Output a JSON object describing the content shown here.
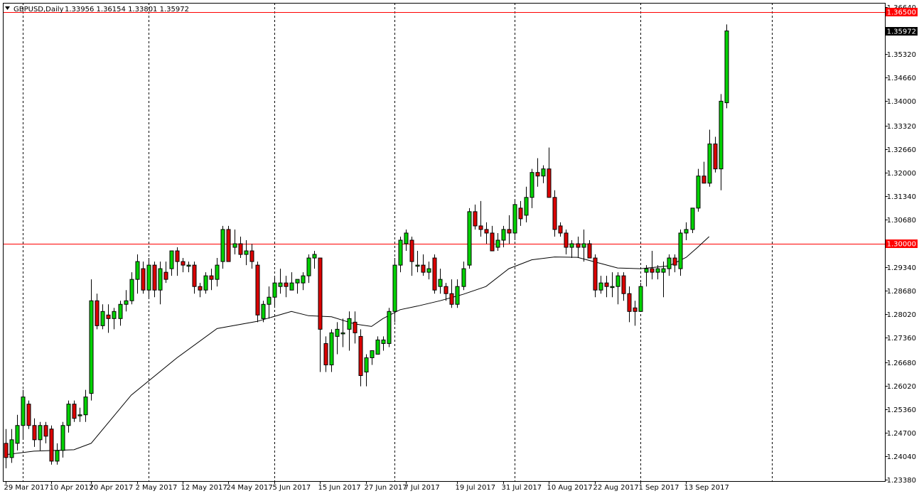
{
  "header": {
    "symbol": "GBPUSD,Daily",
    "ohlc": "1.33956 1.36154 1.33801 1.35972",
    "menu_icon": "triangle-down-icon"
  },
  "colors": {
    "bull": "#00d200",
    "bear": "#dc0000",
    "wick": "#000000",
    "hline": "#ff0000",
    "price_tag": "#000000",
    "level_tag": "#ff0000",
    "ma": "#000000"
  },
  "chart_data": {
    "type": "candlestick",
    "symbol": "GBPUSD",
    "timeframe": "Daily",
    "y_range": [
      1.2338,
      1.3664
    ],
    "y_ticks": [
      "1.36640",
      "1.35320",
      "1.34660",
      "1.34000",
      "1.33320",
      "1.32660",
      "1.32000",
      "1.31340",
      "1.30680",
      "1.29340",
      "1.28680",
      "1.28020",
      "1.27360",
      "1.26680",
      "1.26020",
      "1.25360",
      "1.24700",
      "1.24040",
      "1.23380"
    ],
    "x_labels": [
      "29 Mar 2017",
      "10 Apr 2017",
      "20 Apr 2017",
      "2 May 2017",
      "12 May 2017",
      "24 May 2017",
      "5 Jun 2017",
      "15 Jun 2017",
      "27 Jun 2017",
      "7 Jul 2017",
      "19 Jul 2017",
      "31 Jul 2017",
      "10 Aug 2017",
      "22 Aug 2017",
      "1 Sep 2017",
      "13 Sep 2017"
    ],
    "x_label_index": [
      0,
      8,
      15,
      23,
      31,
      39,
      47,
      55,
      63,
      70,
      79,
      87,
      95,
      103,
      111,
      119
    ],
    "period_separators_index": [
      3,
      25,
      47,
      68,
      89,
      111,
      134
    ],
    "horizontal_levels": [
      {
        "value": 1.365,
        "label": "1.36500"
      },
      {
        "value": 1.3,
        "label": "1.30000"
      }
    ],
    "current_price": {
      "value": 1.35972,
      "label": "1.35972"
    },
    "candles": [
      {
        "o": 1.244,
        "h": 1.248,
        "l": 1.237,
        "c": 1.24
      },
      {
        "o": 1.24,
        "h": 1.248,
        "l": 1.2385,
        "c": 1.245
      },
      {
        "o": 1.244,
        "h": 1.252,
        "l": 1.242,
        "c": 1.249
      },
      {
        "o": 1.249,
        "h": 1.259,
        "l": 1.245,
        "c": 1.257
      },
      {
        "o": 1.255,
        "h": 1.256,
        "l": 1.248,
        "c": 1.249
      },
      {
        "o": 1.249,
        "h": 1.251,
        "l": 1.243,
        "c": 1.245
      },
      {
        "o": 1.245,
        "h": 1.25,
        "l": 1.242,
        "c": 1.249
      },
      {
        "o": 1.249,
        "h": 1.25,
        "l": 1.244,
        "c": 1.246
      },
      {
        "o": 1.248,
        "h": 1.249,
        "l": 1.238,
        "c": 1.239
      },
      {
        "o": 1.239,
        "h": 1.244,
        "l": 1.238,
        "c": 1.242
      },
      {
        "o": 1.242,
        "h": 1.25,
        "l": 1.24,
        "c": 1.249
      },
      {
        "o": 1.249,
        "h": 1.256,
        "l": 1.247,
        "c": 1.255
      },
      {
        "o": 1.255,
        "h": 1.256,
        "l": 1.25,
        "c": 1.251
      },
      {
        "o": 1.252,
        "h": 1.254,
        "l": 1.25,
        "c": 1.252
      },
      {
        "o": 1.252,
        "h": 1.259,
        "l": 1.25,
        "c": 1.257
      },
      {
        "o": 1.258,
        "h": 1.29,
        "l": 1.256,
        "c": 1.284
      },
      {
        "o": 1.284,
        "h": 1.286,
        "l": 1.276,
        "c": 1.277
      },
      {
        "o": 1.277,
        "h": 1.283,
        "l": 1.276,
        "c": 1.281
      },
      {
        "o": 1.28,
        "h": 1.283,
        "l": 1.275,
        "c": 1.279
      },
      {
        "o": 1.279,
        "h": 1.282,
        "l": 1.276,
        "c": 1.281
      },
      {
        "o": 1.279,
        "h": 1.284,
        "l": 1.277,
        "c": 1.283
      },
      {
        "o": 1.283,
        "h": 1.287,
        "l": 1.281,
        "c": 1.284
      },
      {
        "o": 1.284,
        "h": 1.292,
        "l": 1.283,
        "c": 1.29
      },
      {
        "o": 1.29,
        "h": 1.297,
        "l": 1.286,
        "c": 1.295
      },
      {
        "o": 1.293,
        "h": 1.295,
        "l": 1.286,
        "c": 1.287
      },
      {
        "o": 1.287,
        "h": 1.296,
        "l": 1.285,
        "c": 1.294
      },
      {
        "o": 1.294,
        "h": 1.295,
        "l": 1.285,
        "c": 1.287
      },
      {
        "o": 1.287,
        "h": 1.295,
        "l": 1.283,
        "c": 1.293
      },
      {
        "o": 1.292,
        "h": 1.295,
        "l": 1.289,
        "c": 1.29
      },
      {
        "o": 1.293,
        "h": 1.297,
        "l": 1.291,
        "c": 1.298
      },
      {
        "o": 1.298,
        "h": 1.299,
        "l": 1.291,
        "c": 1.295
      },
      {
        "o": 1.295,
        "h": 1.296,
        "l": 1.292,
        "c": 1.294
      },
      {
        "o": 1.294,
        "h": 1.295,
        "l": 1.292,
        "c": 1.294
      },
      {
        "o": 1.294,
        "h": 1.295,
        "l": 1.286,
        "c": 1.288
      },
      {
        "o": 1.288,
        "h": 1.289,
        "l": 1.285,
        "c": 1.287
      },
      {
        "o": 1.287,
        "h": 1.292,
        "l": 1.286,
        "c": 1.291
      },
      {
        "o": 1.291,
        "h": 1.293,
        "l": 1.287,
        "c": 1.29
      },
      {
        "o": 1.29,
        "h": 1.296,
        "l": 1.288,
        "c": 1.294
      },
      {
        "o": 1.295,
        "h": 1.305,
        "l": 1.293,
        "c": 1.304
      },
      {
        "o": 1.304,
        "h": 1.305,
        "l": 1.295,
        "c": 1.295
      },
      {
        "o": 1.299,
        "h": 1.304,
        "l": 1.297,
        "c": 1.3
      },
      {
        "o": 1.3,
        "h": 1.302,
        "l": 1.296,
        "c": 1.297
      },
      {
        "o": 1.297,
        "h": 1.301,
        "l": 1.294,
        "c": 1.298
      },
      {
        "o": 1.298,
        "h": 1.3,
        "l": 1.293,
        "c": 1.295
      },
      {
        "o": 1.294,
        "h": 1.295,
        "l": 1.278,
        "c": 1.28
      },
      {
        "o": 1.279,
        "h": 1.284,
        "l": 1.278,
        "c": 1.283
      },
      {
        "o": 1.283,
        "h": 1.288,
        "l": 1.279,
        "c": 1.285
      },
      {
        "o": 1.285,
        "h": 1.291,
        "l": 1.282,
        "c": 1.289
      },
      {
        "o": 1.288,
        "h": 1.293,
        "l": 1.286,
        "c": 1.289
      },
      {
        "o": 1.289,
        "h": 1.291,
        "l": 1.285,
        "c": 1.288
      },
      {
        "o": 1.287,
        "h": 1.292,
        "l": 1.287,
        "c": 1.289
      },
      {
        "o": 1.289,
        "h": 1.29,
        "l": 1.286,
        "c": 1.29
      },
      {
        "o": 1.289,
        "h": 1.292,
        "l": 1.287,
        "c": 1.291
      },
      {
        "o": 1.291,
        "h": 1.297,
        "l": 1.289,
        "c": 1.296
      },
      {
        "o": 1.296,
        "h": 1.298,
        "l": 1.293,
        "c": 1.297
      },
      {
        "o": 1.296,
        "h": 1.296,
        "l": 1.264,
        "c": 1.276
      },
      {
        "o": 1.272,
        "h": 1.274,
        "l": 1.264,
        "c": 1.266
      },
      {
        "o": 1.266,
        "h": 1.276,
        "l": 1.264,
        "c": 1.275
      },
      {
        "o": 1.274,
        "h": 1.278,
        "l": 1.269,
        "c": 1.276
      },
      {
        "o": 1.275,
        "h": 1.279,
        "l": 1.271,
        "c": 1.275
      },
      {
        "o": 1.276,
        "h": 1.281,
        "l": 1.27,
        "c": 1.279
      },
      {
        "o": 1.278,
        "h": 1.281,
        "l": 1.272,
        "c": 1.275
      },
      {
        "o": 1.274,
        "h": 1.276,
        "l": 1.26,
        "c": 1.263
      },
      {
        "o": 1.264,
        "h": 1.269,
        "l": 1.26,
        "c": 1.268
      },
      {
        "o": 1.268,
        "h": 1.27,
        "l": 1.266,
        "c": 1.27
      },
      {
        "o": 1.269,
        "h": 1.274,
        "l": 1.269,
        "c": 1.273
      },
      {
        "o": 1.272,
        "h": 1.274,
        "l": 1.27,
        "c": 1.273
      },
      {
        "o": 1.272,
        "h": 1.282,
        "l": 1.271,
        "c": 1.281
      },
      {
        "o": 1.281,
        "h": 1.296,
        "l": 1.278,
        "c": 1.294
      },
      {
        "o": 1.294,
        "h": 1.302,
        "l": 1.292,
        "c": 1.301
      },
      {
        "o": 1.3,
        "h": 1.304,
        "l": 1.298,
        "c": 1.303
      },
      {
        "o": 1.301,
        "h": 1.302,
        "l": 1.291,
        "c": 1.295
      },
      {
        "o": 1.294,
        "h": 1.298,
        "l": 1.292,
        "c": 1.294
      },
      {
        "o": 1.294,
        "h": 1.297,
        "l": 1.291,
        "c": 1.292
      },
      {
        "o": 1.292,
        "h": 1.295,
        "l": 1.29,
        "c": 1.293
      },
      {
        "o": 1.296,
        "h": 1.297,
        "l": 1.286,
        "c": 1.287
      },
      {
        "o": 1.288,
        "h": 1.293,
        "l": 1.286,
        "c": 1.29
      },
      {
        "o": 1.288,
        "h": 1.289,
        "l": 1.284,
        "c": 1.286
      },
      {
        "o": 1.286,
        "h": 1.29,
        "l": 1.282,
        "c": 1.283
      },
      {
        "o": 1.283,
        "h": 1.29,
        "l": 1.282,
        "c": 1.288
      },
      {
        "o": 1.288,
        "h": 1.295,
        "l": 1.287,
        "c": 1.293
      },
      {
        "o": 1.294,
        "h": 1.31,
        "l": 1.293,
        "c": 1.309
      },
      {
        "o": 1.309,
        "h": 1.311,
        "l": 1.304,
        "c": 1.305
      },
      {
        "o": 1.305,
        "h": 1.312,
        "l": 1.302,
        "c": 1.304
      },
      {
        "o": 1.304,
        "h": 1.306,
        "l": 1.3,
        "c": 1.303
      },
      {
        "o": 1.303,
        "h": 1.305,
        "l": 1.298,
        "c": 1.298
      },
      {
        "o": 1.299,
        "h": 1.303,
        "l": 1.298,
        "c": 1.301
      },
      {
        "o": 1.301,
        "h": 1.305,
        "l": 1.299,
        "c": 1.304
      },
      {
        "o": 1.304,
        "h": 1.308,
        "l": 1.3,
        "c": 1.303
      },
      {
        "o": 1.303,
        "h": 1.312,
        "l": 1.301,
        "c": 1.311
      },
      {
        "o": 1.31,
        "h": 1.312,
        "l": 1.305,
        "c": 1.307
      },
      {
        "o": 1.308,
        "h": 1.316,
        "l": 1.306,
        "c": 1.313
      },
      {
        "o": 1.313,
        "h": 1.321,
        "l": 1.31,
        "c": 1.32
      },
      {
        "o": 1.32,
        "h": 1.324,
        "l": 1.316,
        "c": 1.319
      },
      {
        "o": 1.319,
        "h": 1.322,
        "l": 1.317,
        "c": 1.321
      },
      {
        "o": 1.321,
        "h": 1.327,
        "l": 1.313,
        "c": 1.313
      },
      {
        "o": 1.313,
        "h": 1.315,
        "l": 1.302,
        "c": 1.304
      },
      {
        "o": 1.305,
        "h": 1.306,
        "l": 1.302,
        "c": 1.303
      },
      {
        "o": 1.303,
        "h": 1.304,
        "l": 1.297,
        "c": 1.299
      },
      {
        "o": 1.299,
        "h": 1.301,
        "l": 1.296,
        "c": 1.3
      },
      {
        "o": 1.3,
        "h": 1.302,
        "l": 1.296,
        "c": 1.299
      },
      {
        "o": 1.299,
        "h": 1.304,
        "l": 1.295,
        "c": 1.3
      },
      {
        "o": 1.3,
        "h": 1.301,
        "l": 1.296,
        "c": 1.296
      },
      {
        "o": 1.296,
        "h": 1.297,
        "l": 1.285,
        "c": 1.287
      },
      {
        "o": 1.287,
        "h": 1.291,
        "l": 1.286,
        "c": 1.289
      },
      {
        "o": 1.289,
        "h": 1.291,
        "l": 1.285,
        "c": 1.288
      },
      {
        "o": 1.288,
        "h": 1.292,
        "l": 1.285,
        "c": 1.288
      },
      {
        "o": 1.288,
        "h": 1.292,
        "l": 1.283,
        "c": 1.291
      },
      {
        "o": 1.291,
        "h": 1.292,
        "l": 1.284,
        "c": 1.286
      },
      {
        "o": 1.286,
        "h": 1.288,
        "l": 1.278,
        "c": 1.281
      },
      {
        "o": 1.282,
        "h": 1.284,
        "l": 1.277,
        "c": 1.281
      },
      {
        "o": 1.281,
        "h": 1.289,
        "l": 1.281,
        "c": 1.288
      },
      {
        "o": 1.292,
        "h": 1.294,
        "l": 1.288,
        "c": 1.293
      },
      {
        "o": 1.293,
        "h": 1.298,
        "l": 1.29,
        "c": 1.292
      },
      {
        "o": 1.292,
        "h": 1.294,
        "l": 1.29,
        "c": 1.293
      },
      {
        "o": 1.292,
        "h": 1.295,
        "l": 1.285,
        "c": 1.293
      },
      {
        "o": 1.293,
        "h": 1.297,
        "l": 1.291,
        "c": 1.296
      },
      {
        "o": 1.296,
        "h": 1.297,
        "l": 1.292,
        "c": 1.294
      },
      {
        "o": 1.293,
        "h": 1.304,
        "l": 1.291,
        "c": 1.303
      },
      {
        "o": 1.303,
        "h": 1.306,
        "l": 1.301,
        "c": 1.304
      },
      {
        "o": 1.304,
        "h": 1.31,
        "l": 1.303,
        "c": 1.31
      },
      {
        "o": 1.31,
        "h": 1.321,
        "l": 1.309,
        "c": 1.319
      },
      {
        "o": 1.319,
        "h": 1.323,
        "l": 1.317,
        "c": 1.317
      },
      {
        "o": 1.317,
        "h": 1.332,
        "l": 1.316,
        "c": 1.328
      },
      {
        "o": 1.328,
        "h": 1.33,
        "l": 1.32,
        "c": 1.321
      },
      {
        "o": 1.321,
        "h": 1.342,
        "l": 1.315,
        "c": 1.34
      },
      {
        "o": 1.33956,
        "h": 1.36154,
        "l": 1.33801,
        "c": 1.35972
      }
    ],
    "moving_average": [
      {
        "i": 0,
        "v": 1.2408
      },
      {
        "i": 5,
        "v": 1.2418
      },
      {
        "i": 12,
        "v": 1.2422
      },
      {
        "i": 15,
        "v": 1.244
      },
      {
        "i": 22,
        "v": 1.2575
      },
      {
        "i": 30,
        "v": 1.268
      },
      {
        "i": 37,
        "v": 1.2762
      },
      {
        "i": 44,
        "v": 1.2782
      },
      {
        "i": 50,
        "v": 1.281
      },
      {
        "i": 53,
        "v": 1.2798
      },
      {
        "i": 57,
        "v": 1.2795
      },
      {
        "i": 61,
        "v": 1.2775
      },
      {
        "i": 64,
        "v": 1.2768
      },
      {
        "i": 66,
        "v": 1.279
      },
      {
        "i": 69,
        "v": 1.2815
      },
      {
        "i": 72,
        "v": 1.2825
      },
      {
        "i": 76,
        "v": 1.284
      },
      {
        "i": 80,
        "v": 1.2858
      },
      {
        "i": 84,
        "v": 1.288
      },
      {
        "i": 88,
        "v": 1.293
      },
      {
        "i": 92,
        "v": 1.2955
      },
      {
        "i": 96,
        "v": 1.2963
      },
      {
        "i": 100,
        "v": 1.2962
      },
      {
        "i": 104,
        "v": 1.2945
      },
      {
        "i": 107,
        "v": 1.2932
      },
      {
        "i": 111,
        "v": 1.293
      },
      {
        "i": 116,
        "v": 1.2938
      },
      {
        "i": 119,
        "v": 1.2962
      },
      {
        "i": 121,
        "v": 1.299
      },
      {
        "i": 123,
        "v": 1.302
      }
    ]
  }
}
